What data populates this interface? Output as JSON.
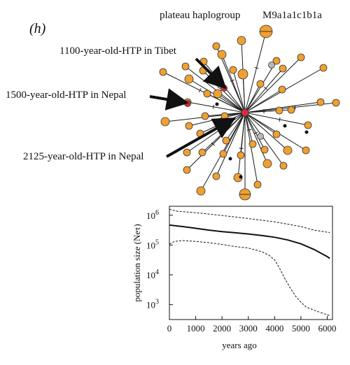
{
  "figure": {
    "panel_label": "(h)",
    "haplogroup_label": "plateau haplogroup",
    "haplogroup_name": "M9a1a1c1b1a"
  },
  "annotations": {
    "tibet": "1100-year-old-HTP in Tibet",
    "nepal_1500": "1500-year-old-HTP in Nepal",
    "nepal_2125": "2125-year-old-HTP in Nepal"
  },
  "colors": {
    "node_fill": "#f0a030",
    "ancient_sample": "#d42a3c",
    "center_node": "#e8283c",
    "grey_node": "#b8b8b8",
    "edge": "#1a1a1a"
  },
  "chart_data": {
    "type": "line",
    "xlabel": "years ago",
    "ylabel": "population size (Neτ)",
    "x_ticks": [
      "0",
      "1000",
      "2000",
      "3000",
      "4000",
      "5000",
      "6000"
    ],
    "y_ticks": [
      {
        "base": "10",
        "exp": "3"
      },
      {
        "base": "10",
        "exp": "4"
      },
      {
        "base": "10",
        "exp": "5"
      },
      {
        "base": "10",
        "exp": "6"
      }
    ],
    "xlim": [
      0,
      6200
    ],
    "ylim_log10": [
      2.5,
      6.3
    ],
    "scale_y": "log",
    "series": [
      {
        "style": "solid",
        "x": [
          0,
          500,
          1000,
          1500,
          2000,
          2500,
          3000,
          3500,
          4000,
          4500,
          5000,
          5500,
          6000,
          6100
        ],
        "log10_y": [
          5.67,
          5.62,
          5.56,
          5.5,
          5.45,
          5.41,
          5.37,
          5.32,
          5.26,
          5.17,
          5.04,
          4.85,
          4.61,
          4.55
        ]
      },
      {
        "style": "dashed",
        "x": [
          0,
          300,
          800,
          1500,
          2000,
          2500,
          3000,
          3500,
          4000,
          4500,
          5000,
          5500,
          6000,
          6100
        ],
        "log10_y": [
          6.2,
          6.13,
          6.1,
          6.04,
          5.99,
          5.94,
          5.89,
          5.83,
          5.78,
          5.7,
          5.62,
          5.5,
          5.43,
          5.42
        ]
      },
      {
        "style": "dashed",
        "x": [
          0,
          200,
          500,
          1000,
          1500,
          2000,
          2500,
          3000,
          3500,
          3800,
          4000,
          4200,
          4400,
          4600,
          4800,
          5000,
          5200,
          5400,
          5600,
          5800,
          6000,
          6100
        ],
        "log10_y": [
          5.03,
          5.12,
          5.15,
          5.12,
          5.08,
          5.02,
          4.95,
          4.9,
          4.78,
          4.65,
          4.5,
          4.2,
          3.85,
          3.55,
          3.28,
          3.08,
          2.92,
          2.85,
          2.78,
          2.72,
          2.66,
          2.64
        ]
      }
    ]
  }
}
